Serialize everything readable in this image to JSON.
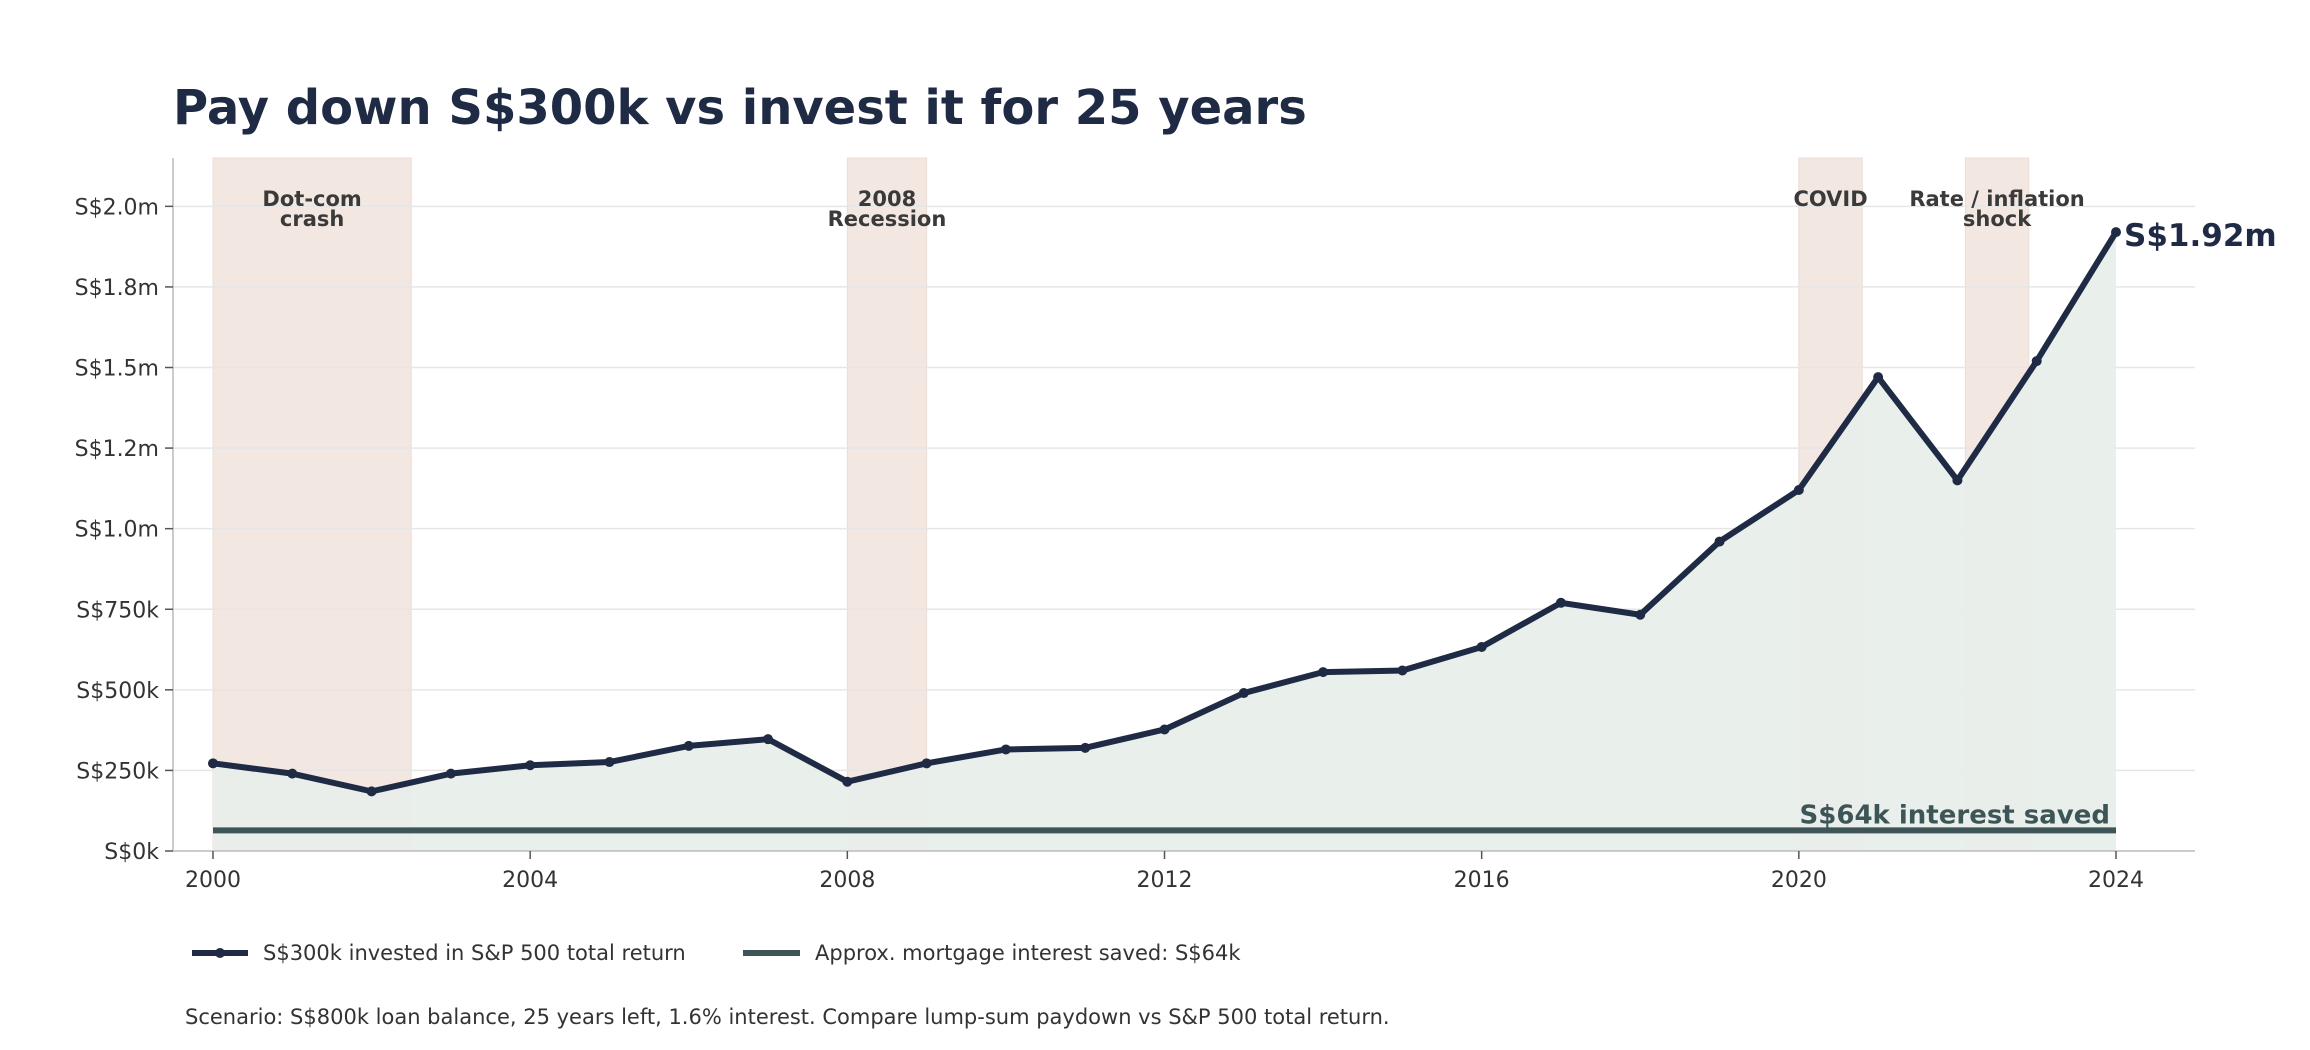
{
  "title": "Pay down S$300k vs invest it for 25 years",
  "caption": "Scenario: S$800k loan balance, 25 years left, 1.6% interest. Compare lump-sum paydown vs S&P 500 total return.",
  "colors": {
    "investment_line": "#1f2a44",
    "interest_line": "#3d5557",
    "area_fill": "#e8eeea",
    "band_fill": "#f3e7e2",
    "grid": "#e6e6e6"
  },
  "chart_data": {
    "type": "line",
    "title": "Pay down S$300k vs invest it for 25 years",
    "xlim": [
      1999.6,
      2024.9
    ],
    "ylim": [
      0,
      2150000
    ],
    "x_ticks": [
      2000,
      2004,
      2008,
      2012,
      2016,
      2020,
      2024
    ],
    "y_ticks": [
      {
        "value": 0,
        "label": "S$0k"
      },
      {
        "value": 250000,
        "label": "S$250k"
      },
      {
        "value": 500000,
        "label": "S$500k"
      },
      {
        "value": 750000,
        "label": "S$750k"
      },
      {
        "value": 1000000,
        "label": "S$1.0m"
      },
      {
        "value": 1250000,
        "label": "S$1.2m"
      },
      {
        "value": 1500000,
        "label": "S$1.5m"
      },
      {
        "value": 1750000,
        "label": "S$1.8m"
      },
      {
        "value": 2000000,
        "label": "S$2.0m"
      }
    ],
    "grid": true,
    "legend_position": "bottom-left",
    "series": [
      {
        "name": "S$300k invested in S&P 500 total return",
        "x": [
          2000,
          2001,
          2002,
          2003,
          2004,
          2005,
          2006,
          2007,
          2008,
          2009,
          2010,
          2011,
          2012,
          2013,
          2014,
          2015,
          2016,
          2017,
          2018,
          2019,
          2020,
          2021,
          2022,
          2023,
          2024
        ],
        "values": [
          272000,
          240000,
          185000,
          240000,
          266000,
          276000,
          326000,
          347000,
          215000,
          272000,
          315000,
          320000,
          377000,
          490000,
          555000,
          560000,
          633000,
          770000,
          733000,
          960000,
          1120000,
          1470000,
          1150000,
          1520000,
          1920000
        ]
      },
      {
        "name": "Approx. mortgage interest saved: S$64k",
        "x": [
          2000,
          2024
        ],
        "values": [
          64000,
          64000
        ]
      }
    ],
    "shaded_periods": [
      {
        "label": [
          "Dot-com",
          "crash"
        ],
        "start": 2000,
        "end": 2002.5
      },
      {
        "label": [
          "2008",
          "Recession"
        ],
        "start": 2008,
        "end": 2009
      },
      {
        "label": [
          "COVID"
        ],
        "start": 2020,
        "end": 2020.8
      },
      {
        "label": [
          "Rate / inflation",
          "shock"
        ],
        "start": 2022.1,
        "end": 2022.9
      }
    ],
    "annotations": {
      "end_value": "S$1.92m",
      "flat_line": "S$64k interest saved"
    }
  }
}
